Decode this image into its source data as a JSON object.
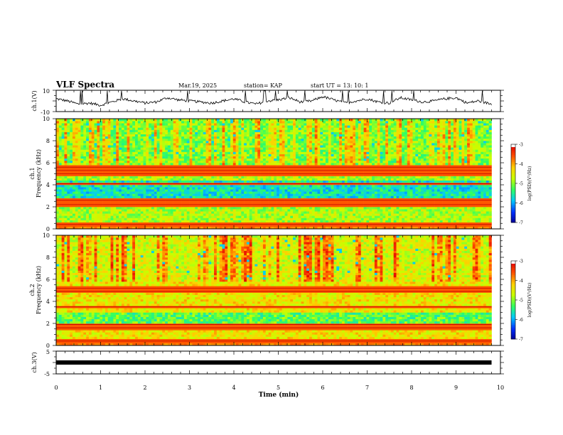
{
  "header": {
    "title": "VLF Spectra",
    "date": "Mar.19, 2025",
    "station": "station= KAP",
    "start": "start  UT =   13: 10: 1"
  },
  "chart_data": [
    {
      "type": "line",
      "name": "ch1-waveform",
      "ylabel": "ch.1(V)",
      "ylim": [
        -10,
        10
      ],
      "ytick_labels": [
        "10",
        "-10"
      ],
      "x": [
        0.0,
        0.25,
        0.5,
        0.75,
        1.0,
        1.25,
        1.5,
        1.75,
        2.0,
        2.25,
        2.5,
        2.75,
        3.0,
        3.25,
        3.5,
        3.75,
        4.0,
        4.25,
        4.5,
        4.75,
        5.0,
        5.25,
        5.5,
        5.75,
        6.0,
        6.25,
        6.5,
        6.75,
        7.0,
        7.25,
        7.5,
        7.75,
        8.0,
        8.25,
        8.5,
        8.75,
        9.0,
        9.25,
        9.5,
        9.8
      ],
      "y": [
        2,
        0,
        -3,
        -2,
        -4,
        -1,
        2,
        0,
        -2,
        -1,
        3,
        1,
        0,
        -1,
        -2,
        0,
        2,
        -1,
        -3,
        0,
        1,
        3,
        -1,
        0,
        4,
        1,
        -2,
        0,
        2,
        -1,
        -2,
        3,
        1,
        -1,
        0,
        2,
        3,
        -2,
        0,
        -3
      ]
    },
    {
      "type": "heatmap",
      "name": "ch1-spectrogram",
      "ylabel": "ch.1\nFrequency (kHz)",
      "ylim": [
        0,
        10
      ],
      "ytick_labels": [
        "0",
        "2",
        "4",
        "6",
        "8",
        "10"
      ],
      "colorbar": {
        "label": "log(PSD)(V²/Hz)",
        "ticks": [
          "-3",
          "-4",
          "-5",
          "-6",
          "-7"
        ],
        "range": [
          -7,
          -3
        ]
      },
      "bands_khz": [
        0.4,
        2.2,
        2.6,
        4.1,
        5.0,
        5.3,
        5.6
      ],
      "lower_band_khz": [
        2.5,
        4.5
      ]
    },
    {
      "type": "heatmap",
      "name": "ch2-spectrogram",
      "ylabel": "ch.2\nFrequency (kHz)",
      "ylim": [
        0,
        10
      ],
      "ytick_labels": [
        "0",
        "2",
        "4",
        "6",
        "8",
        "10"
      ],
      "colorbar": {
        "label": "log(PSD)(V²/Hz)",
        "ticks": [
          "-3",
          "-4",
          "-5",
          "-6",
          "-7"
        ],
        "range": [
          -7,
          -3
        ]
      },
      "bands_khz": [
        0.4,
        1.6,
        1.9,
        3.5,
        4.9,
        5.2
      ],
      "lower_band_khz": [
        1.7,
        3.0
      ]
    },
    {
      "type": "line",
      "name": "ch3-waveform",
      "ylabel": "ch.3(V)",
      "ylim": [
        -5,
        5
      ],
      "ytick_labels": [
        "5",
        "-5"
      ],
      "x": [
        0.0,
        9.8
      ],
      "y": [
        0,
        0
      ]
    }
  ],
  "time_axis": {
    "xlabel": "Time (min)",
    "xlim": [
      0,
      10
    ],
    "tick_labels": [
      "0",
      "1",
      "2",
      "3",
      "4",
      "5",
      "6",
      "7",
      "8",
      "9",
      "10"
    ],
    "data_end_min": 9.8
  },
  "colors": {
    "axis": "#000000",
    "background": "#ffffff",
    "colormap": [
      "#000090",
      "#0030ff",
      "#00c8ff",
      "#30ff60",
      "#c8ff00",
      "#ffd000",
      "#ff5000",
      "#e00000",
      "#ffffff"
    ]
  }
}
